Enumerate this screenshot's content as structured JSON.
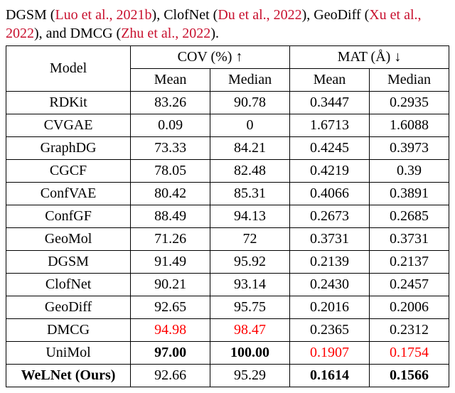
{
  "caption": {
    "prefix": "DGSM (",
    "cite1": "Luo et al., 2021b",
    "sep1": "), ClofNet (",
    "cite2": "Du et al., 2022",
    "sep2": "), GeoDiff (",
    "cite3": "Xu et al., 2022",
    "sep3": "), and DMCG (",
    "cite4": "Zhu et al., 2022",
    "suffix": ")."
  },
  "header": {
    "model": "Model",
    "cov": "COV (%) ↑",
    "mat": "MAT (Å) ↓",
    "mean": "Mean",
    "median": "Median"
  },
  "rows": [
    {
      "model": "RDKit",
      "cov_mean": "83.26",
      "cov_med": "90.78",
      "mat_mean": "0.3447",
      "mat_med": "0.2935"
    },
    {
      "model": "CVGAE",
      "cov_mean": "0.09",
      "cov_med": "0",
      "mat_mean": "1.6713",
      "mat_med": "1.6088"
    },
    {
      "model": "GraphDG",
      "cov_mean": "73.33",
      "cov_med": "84.21",
      "mat_mean": "0.4245",
      "mat_med": "0.3973"
    },
    {
      "model": "CGCF",
      "cov_mean": "78.05",
      "cov_med": "82.48",
      "mat_mean": "0.4219",
      "mat_med": "0.39"
    },
    {
      "model": "ConfVAE",
      "cov_mean": "80.42",
      "cov_med": "85.31",
      "mat_mean": "0.4066",
      "mat_med": "0.3891"
    },
    {
      "model": "ConfGF",
      "cov_mean": "88.49",
      "cov_med": "94.13",
      "mat_mean": "0.2673",
      "mat_med": "0.2685"
    },
    {
      "model": "GeoMol",
      "cov_mean": "71.26",
      "cov_med": "72",
      "mat_mean": "0.3731",
      "mat_med": "0.3731"
    },
    {
      "model": "DGSM",
      "cov_mean": "91.49",
      "cov_med": "95.92",
      "mat_mean": "0.2139",
      "mat_med": "0.2137"
    },
    {
      "model": "ClofNet",
      "cov_mean": "90.21",
      "cov_med": "93.14",
      "mat_mean": "0.2430",
      "mat_med": "0.2457"
    },
    {
      "model": "GeoDiff",
      "cov_mean": "92.65",
      "cov_med": "95.75",
      "mat_mean": "0.2016",
      "mat_med": "0.2006"
    },
    {
      "model": "DMCG",
      "cov_mean": "94.98",
      "cov_med": "98.47",
      "mat_mean": "0.2365",
      "mat_med": "0.2312",
      "cov_mean_cls": "red",
      "cov_med_cls": "red"
    },
    {
      "model": "UniMol",
      "cov_mean": "97.00",
      "cov_med": "100.00",
      "mat_mean": "0.1907",
      "mat_med": "0.1754",
      "cov_mean_cls": "bold",
      "cov_med_cls": "bold",
      "mat_mean_cls": "red",
      "mat_med_cls": "red"
    },
    {
      "model": "WeLNet (Ours)",
      "model_cls": "bold",
      "cov_mean": "92.66",
      "cov_med": "95.29",
      "mat_mean": "0.1614",
      "mat_med": "0.1566",
      "mat_mean_cls": "bold",
      "mat_med_cls": "bold"
    }
  ]
}
